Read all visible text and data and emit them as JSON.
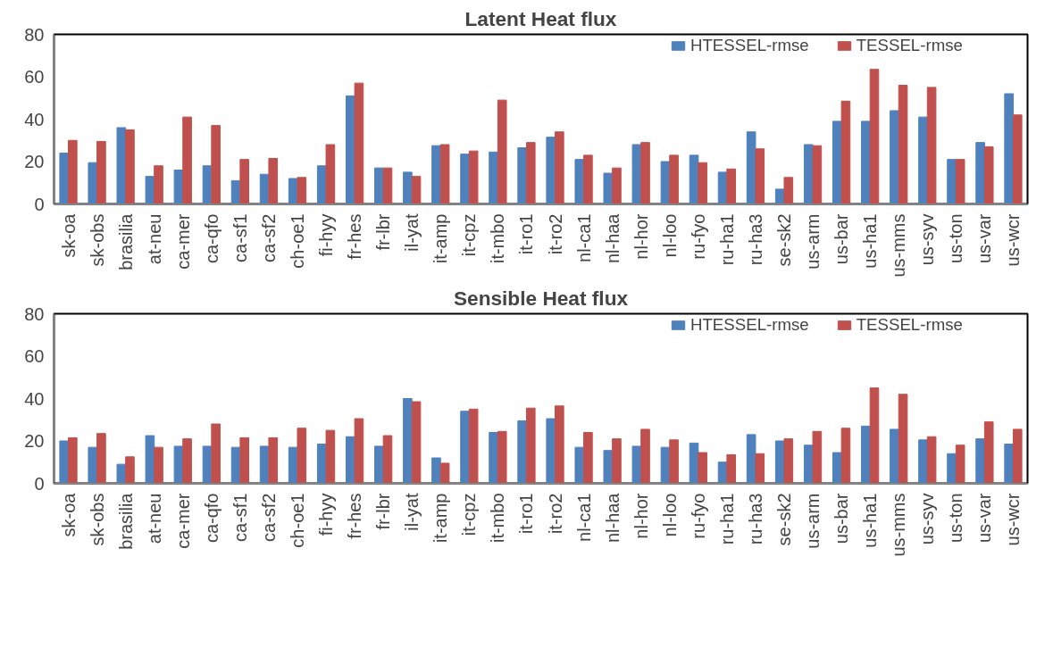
{
  "chart_data": [
    {
      "type": "bar",
      "title": "Latent Heat flux",
      "categories": [
        "sk-oa",
        "sk-obs",
        "brasilia",
        "at-neu",
        "ca-mer",
        "ca-qfo",
        "ca-sf1",
        "ca-sf2",
        "ch-oe1",
        "fi-hyy",
        "fr-hes",
        "fr-lbr",
        "il-yat",
        "it-amp",
        "it-cpz",
        "it-mbo",
        "it-ro1",
        "it-ro2",
        "nl-ca1",
        "nl-haa",
        "nl-hor",
        "nl-loo",
        "ru-fyo",
        "ru-ha1",
        "ru-ha3",
        "se-sk2",
        "us-arm",
        "us-bar",
        "us-ha1",
        "us-mms",
        "us-syv",
        "us-ton",
        "us-var",
        "us-wcr"
      ],
      "series": [
        {
          "name": "HTESSEL-rmse",
          "color": "#4f81bd",
          "values": [
            24,
            19.5,
            36,
            13,
            16,
            18,
            11,
            14,
            12,
            18,
            51,
            17,
            15,
            27.5,
            23.5,
            24.5,
            26.5,
            31.5,
            21,
            14.5,
            28,
            20,
            23,
            15,
            34,
            7,
            28,
            39,
            39,
            44,
            41,
            21,
            29,
            52
          ]
        },
        {
          "name": "TESSEL-rmse",
          "color": "#c0504d",
          "values": [
            30,
            29.5,
            35,
            18,
            41,
            37,
            21,
            21.5,
            12.5,
            28,
            57,
            17,
            13,
            28,
            25,
            49,
            29,
            34,
            23,
            17,
            29,
            23,
            19.5,
            16.5,
            26,
            12.5,
            27.5,
            48.5,
            63.5,
            56,
            55,
            21,
            27,
            42
          ]
        }
      ],
      "ylim": [
        0,
        80
      ],
      "yticks": [
        0,
        20,
        40,
        60,
        80
      ],
      "legend": "top right"
    },
    {
      "type": "bar",
      "title": "Sensible Heat flux",
      "categories": [
        "sk-oa",
        "sk-obs",
        "brasilia",
        "at-neu",
        "ca-mer",
        "ca-qfo",
        "ca-sf1",
        "ca-sf2",
        "ch-oe1",
        "fi-hyy",
        "fr-hes",
        "fr-lbr",
        "il-yat",
        "it-amp",
        "it-cpz",
        "it-mbo",
        "it-ro1",
        "it-ro2",
        "nl-ca1",
        "nl-haa",
        "nl-hor",
        "nl-loo",
        "ru-fyo",
        "ru-ha1",
        "ru-ha3",
        "se-sk2",
        "us-arm",
        "us-bar",
        "us-ha1",
        "us-mms",
        "us-syv",
        "us-ton",
        "us-var",
        "us-wcr"
      ],
      "series": [
        {
          "name": "HTESSEL-rmse",
          "color": "#4f81bd",
          "values": [
            20,
            17,
            9,
            22.5,
            17.5,
            17.5,
            17,
            17.5,
            17,
            18.5,
            22,
            17.5,
            40,
            12,
            34,
            24,
            29.5,
            30.5,
            17,
            15.5,
            17.5,
            17,
            19,
            10,
            23,
            20,
            18,
            14.5,
            27,
            25.5,
            20.5,
            14,
            21,
            18.5
          ]
        },
        {
          "name": "TESSEL-rmse",
          "color": "#c0504d",
          "values": [
            21.5,
            23.5,
            12.5,
            17,
            21,
            28,
            21.5,
            21.5,
            26,
            25,
            30.5,
            22.5,
            38.5,
            9.5,
            35,
            24.5,
            35.5,
            36.5,
            24,
            21,
            25.5,
            20.5,
            14.5,
            13.5,
            14,
            21,
            24.5,
            26,
            45,
            42,
            22,
            18,
            29,
            25.5
          ]
        }
      ],
      "ylim": [
        0,
        80
      ],
      "yticks": [
        0,
        20,
        40,
        60,
        80
      ],
      "legend": "top right"
    }
  ]
}
